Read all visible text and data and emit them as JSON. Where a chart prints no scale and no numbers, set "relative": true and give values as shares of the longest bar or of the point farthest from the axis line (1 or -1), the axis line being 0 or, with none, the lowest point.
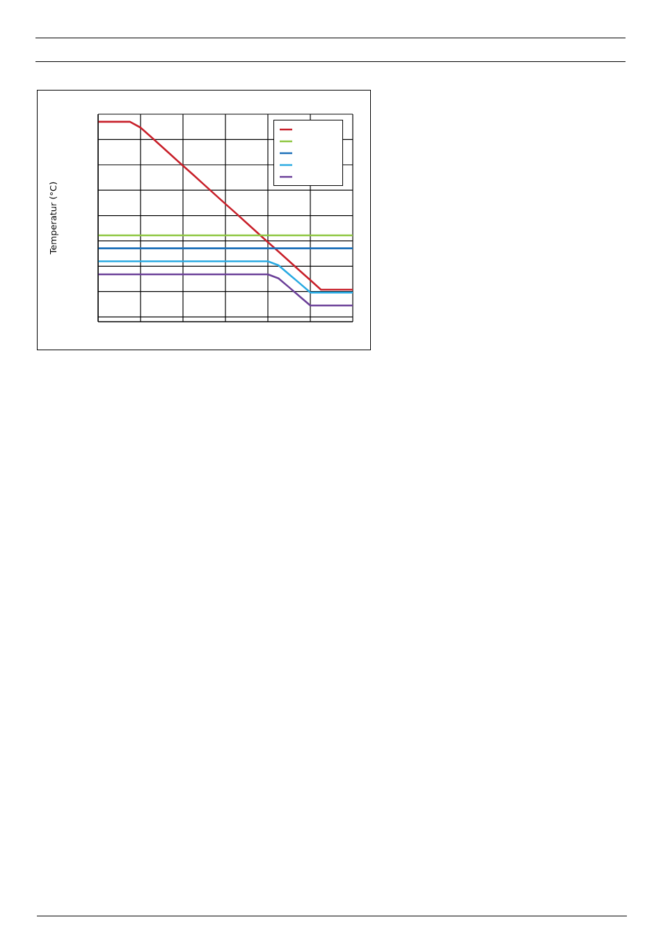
{
  "chart_data": {
    "type": "line",
    "ylabel": "Temperatur (°C)",
    "relative": true,
    "grid": true,
    "line_style": "solid",
    "categories": [
      null,
      null,
      null,
      null,
      null,
      null,
      null,
      null,
      null,
      null,
      null,
      null,
      null,
      null,
      null,
      null,
      null,
      null,
      null,
      null,
      null,
      null,
      null,
      null,
      null
    ],
    "series": [
      {
        "color": "#c8202a",
        "values": [
          1,
          1,
          1,
          1,
          0.971,
          0.924,
          0.876,
          0.828,
          0.78,
          0.733,
          0.685,
          0.637,
          0.589,
          0.542,
          0.494,
          0.446,
          0.398,
          0.351,
          0.303,
          0.255,
          0.208,
          0.16,
          0.16,
          0.16,
          0.16
        ]
      },
      {
        "color": "#8dc63f",
        "values": [
          0.432,
          0.432,
          0.432,
          0.432,
          0.432,
          0.432,
          0.432,
          0.432,
          0.432,
          0.432,
          0.432,
          0.432,
          0.432,
          0.432,
          0.432,
          0.432,
          0.432,
          0.432,
          0.432,
          0.432,
          0.432,
          0.432,
          0.432,
          0.432,
          0.432
        ]
      },
      {
        "color": "#1b6fb8",
        "values": [
          0.367,
          0.367,
          0.367,
          0.367,
          0.367,
          0.367,
          0.367,
          0.367,
          0.367,
          0.367,
          0.367,
          0.367,
          0.367,
          0.367,
          0.367,
          0.367,
          0.367,
          0.367,
          0.367,
          0.367,
          0.367,
          0.367,
          0.367,
          0.367,
          0.367
        ]
      },
      {
        "color": "#29aae2",
        "values": [
          0.302,
          0.302,
          0.302,
          0.302,
          0.302,
          0.302,
          0.302,
          0.302,
          0.302,
          0.302,
          0.302,
          0.302,
          0.302,
          0.302,
          0.302,
          0.302,
          0.302,
          0.282,
          0.237,
          0.192,
          0.146,
          0.146,
          0.146,
          0.146,
          0.146
        ]
      },
      {
        "color": "#6b3f98",
        "values": [
          0.237,
          0.237,
          0.237,
          0.237,
          0.237,
          0.237,
          0.237,
          0.237,
          0.237,
          0.237,
          0.237,
          0.237,
          0.237,
          0.237,
          0.237,
          0.237,
          0.237,
          0.217,
          0.172,
          0.126,
          0.081,
          0.081,
          0.081,
          0.081,
          0.081
        ]
      }
    ]
  }
}
